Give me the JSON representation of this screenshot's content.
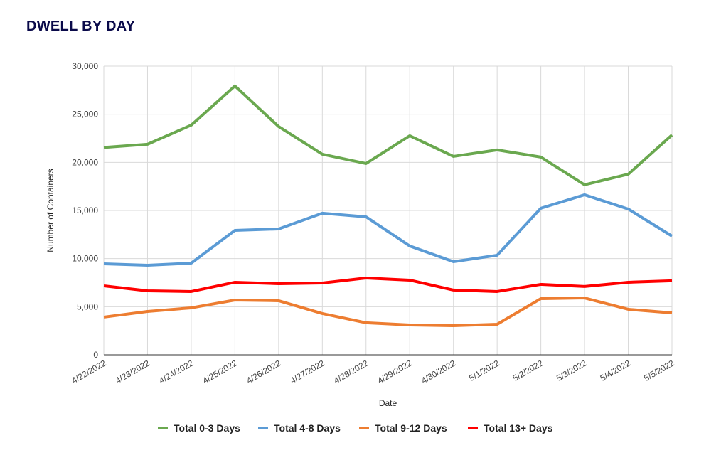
{
  "title": "DWELL BY DAY",
  "chart_data": {
    "type": "line",
    "title": "DWELL BY DAY",
    "xlabel": "Date",
    "ylabel": "Number of Containers",
    "ylim": [
      0,
      30000
    ],
    "yticks": [
      "0",
      "5,000",
      "10,000",
      "15,000",
      "20,000",
      "25,000",
      "30,000"
    ],
    "grid": true,
    "legend": "bottom",
    "categories": [
      "4/22/2022",
      "4/23/2022",
      "4/24/2022",
      "4/25/2022",
      "4/26/2022",
      "4/27/2022",
      "4/28/2022",
      "4/29/2022",
      "4/30/2022",
      "5/1/2022",
      "5/2/2022",
      "5/3/2022",
      "5/4/2022",
      "5/5/2022"
    ],
    "series": [
      {
        "name": "Total 0-3 Days",
        "color": "#6aa84f",
        "values": [
          21550,
          21880,
          23870,
          27940,
          23720,
          20840,
          19880,
          22760,
          20620,
          21290,
          20550,
          17670,
          18770,
          22840
        ]
      },
      {
        "name": "Total 4-8 Days",
        "color": "#5b9bd5",
        "values": [
          9460,
          9310,
          9530,
          12930,
          13080,
          14710,
          14340,
          11310,
          9680,
          10350,
          15230,
          16630,
          15150,
          12340
        ]
      },
      {
        "name": "Total 9-12 Days",
        "color": "#ed7d31",
        "values": [
          3920,
          4510,
          4880,
          5690,
          5620,
          4290,
          3330,
          3100,
          3030,
          3180,
          5840,
          5910,
          4730,
          4360
        ]
      },
      {
        "name": "Total 13+ Days",
        "color": "#ff0000",
        "values": [
          7170,
          6650,
          6580,
          7540,
          7390,
          7460,
          7980,
          7760,
          6730,
          6580,
          7320,
          7100,
          7540,
          7690
        ]
      }
    ]
  }
}
